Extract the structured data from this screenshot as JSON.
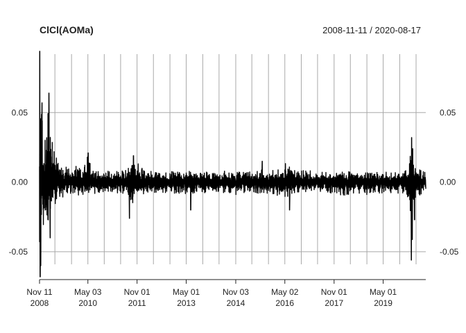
{
  "chart_data": {
    "type": "line",
    "title": "ClCl(AOMa)",
    "date_range": "2008-11-11 / 2020-08-17",
    "x_range": [
      "2008-11-11",
      "2020-08-17"
    ],
    "ylim": [
      -0.07,
      0.095
    ],
    "y_ticks": [
      "0.05",
      "0.00",
      "-0.05"
    ],
    "y_tick_values": [
      0.05,
      0.0,
      -0.05
    ],
    "x_major_ticks": [
      {
        "date": "2008-11-11",
        "label_top": "Nov 11",
        "label_bottom": "2008"
      },
      {
        "date": "2010-05-03",
        "label_top": "May 03",
        "label_bottom": "2010"
      },
      {
        "date": "2011-11-01",
        "label_top": "Nov 01",
        "label_bottom": "2011"
      },
      {
        "date": "2013-05-01",
        "label_top": "May 01",
        "label_bottom": "2013"
      },
      {
        "date": "2014-11-03",
        "label_top": "Nov 03",
        "label_bottom": "2014"
      },
      {
        "date": "2016-05-02",
        "label_top": "May 02",
        "label_bottom": "2016"
      },
      {
        "date": "2017-11-01",
        "label_top": "Nov 01",
        "label_bottom": "2017"
      },
      {
        "date": "2019-05-01",
        "label_top": "May 01",
        "label_bottom": "2019"
      }
    ],
    "x_grid_dates": [
      "2009-05-01",
      "2009-11-02",
      "2010-05-03",
      "2010-11-01",
      "2011-05-02",
      "2011-11-01",
      "2012-05-01",
      "2012-11-01",
      "2013-05-01",
      "2013-11-01",
      "2014-05-01",
      "2014-11-03",
      "2015-05-01",
      "2015-11-02",
      "2016-05-02",
      "2016-11-01",
      "2017-05-01",
      "2017-11-01",
      "2018-05-01",
      "2018-11-01",
      "2019-05-01",
      "2019-11-01",
      "2020-05-01"
    ],
    "grid": true,
    "series": [
      {
        "color": "#000000",
        "envelope": {
          "dates": [
            "2008-11-11",
            "2008-11-20",
            "2008-12-05",
            "2009-01-05",
            "2009-02-02",
            "2009-03-02",
            "2009-04-01",
            "2009-05-01",
            "2009-06-01",
            "2009-07-01",
            "2009-08-03",
            "2009-09-01",
            "2009-10-01",
            "2009-11-02",
            "2010-01-04",
            "2010-03-01",
            "2010-05-03",
            "2010-07-01",
            "2010-09-01",
            "2010-11-01",
            "2011-01-03",
            "2011-03-01",
            "2011-05-02",
            "2011-07-01",
            "2011-09-01",
            "2011-11-01",
            "2012-01-03",
            "2012-03-01",
            "2012-05-01",
            "2012-07-02",
            "2012-09-04",
            "2012-11-01",
            "2013-01-02",
            "2013-03-01",
            "2013-05-01",
            "2013-07-01",
            "2013-09-03",
            "2013-11-01",
            "2014-01-02",
            "2014-03-03",
            "2014-05-01",
            "2014-07-01",
            "2014-09-02",
            "2014-11-03",
            "2015-01-02",
            "2015-03-02",
            "2015-05-01",
            "2015-07-01",
            "2015-09-01",
            "2015-11-02",
            "2016-01-04",
            "2016-03-01",
            "2016-05-02",
            "2016-07-01",
            "2016-09-01",
            "2016-11-01",
            "2017-01-03",
            "2017-03-01",
            "2017-05-01",
            "2017-07-03",
            "2017-09-01",
            "2017-11-01",
            "2018-01-02",
            "2018-03-01",
            "2018-05-01",
            "2018-07-02",
            "2018-09-04",
            "2018-11-01",
            "2019-01-02",
            "2019-03-01",
            "2019-05-01",
            "2019-07-01",
            "2019-09-03",
            "2019-11-01",
            "2020-01-02",
            "2020-02-03",
            "2020-02-24",
            "2020-03-09",
            "2020-03-16",
            "2020-03-23",
            "2020-04-01",
            "2020-04-15",
            "2020-05-01",
            "2020-06-01",
            "2020-07-01",
            "2020-08-17"
          ],
          "upper": [
            0.045,
            0.094,
            0.058,
            0.038,
            0.04,
            0.064,
            0.03,
            0.022,
            0.016,
            0.014,
            0.012,
            0.012,
            0.01,
            0.009,
            0.012,
            0.009,
            0.021,
            0.009,
            0.008,
            0.009,
            0.008,
            0.008,
            0.008,
            0.009,
            0.016,
            0.018,
            0.009,
            0.008,
            0.009,
            0.008,
            0.008,
            0.008,
            0.007,
            0.008,
            0.009,
            0.007,
            0.008,
            0.007,
            0.008,
            0.007,
            0.007,
            0.008,
            0.007,
            0.008,
            0.009,
            0.008,
            0.007,
            0.008,
            0.009,
            0.008,
            0.009,
            0.01,
            0.016,
            0.011,
            0.009,
            0.008,
            0.009,
            0.008,
            0.007,
            0.008,
            0.007,
            0.007,
            0.008,
            0.009,
            0.008,
            0.008,
            0.007,
            0.007,
            0.008,
            0.007,
            0.008,
            0.007,
            0.007,
            0.007,
            0.008,
            0.012,
            0.018,
            0.025,
            0.032,
            0.026,
            0.021,
            0.017,
            0.013,
            0.01,
            0.009,
            0.007
          ],
          "lower": [
            -0.04,
            -0.068,
            -0.052,
            -0.031,
            -0.04,
            -0.028,
            -0.02,
            -0.016,
            -0.013,
            -0.011,
            -0.011,
            -0.01,
            -0.009,
            -0.009,
            -0.01,
            -0.009,
            -0.011,
            -0.009,
            -0.008,
            -0.009,
            -0.008,
            -0.008,
            -0.009,
            -0.01,
            -0.018,
            -0.014,
            -0.009,
            -0.008,
            -0.008,
            -0.008,
            -0.008,
            -0.008,
            -0.008,
            -0.008,
            -0.009,
            -0.008,
            -0.008,
            -0.008,
            -0.008,
            -0.007,
            -0.007,
            -0.008,
            -0.008,
            -0.009,
            -0.008,
            -0.008,
            -0.007,
            -0.008,
            -0.008,
            -0.008,
            -0.009,
            -0.011,
            -0.012,
            -0.009,
            -0.008,
            -0.009,
            -0.008,
            -0.008,
            -0.007,
            -0.008,
            -0.008,
            -0.008,
            -0.009,
            -0.01,
            -0.009,
            -0.008,
            -0.008,
            -0.009,
            -0.008,
            -0.008,
            -0.008,
            -0.008,
            -0.008,
            -0.008,
            -0.009,
            -0.016,
            -0.025,
            -0.038,
            -0.056,
            -0.04,
            -0.027,
            -0.018,
            -0.013,
            -0.01,
            -0.009,
            -0.007
          ]
        },
        "spikes": [
          {
            "date": "2008-11-14",
            "value": 0.094
          },
          {
            "date": "2008-11-18",
            "value": -0.068
          },
          {
            "date": "2008-11-24",
            "value": -0.06
          },
          {
            "date": "2008-12-08",
            "value": 0.057
          },
          {
            "date": "2009-02-23",
            "value": 0.064
          },
          {
            "date": "2009-03-09",
            "value": -0.04
          },
          {
            "date": "2010-05-06",
            "value": 0.021
          },
          {
            "date": "2011-08-08",
            "value": -0.026
          },
          {
            "date": "2011-09-22",
            "value": 0.019
          },
          {
            "date": "2013-06-20",
            "value": -0.02
          },
          {
            "date": "2015-08-24",
            "value": 0.015
          },
          {
            "date": "2016-06-24",
            "value": -0.02
          },
          {
            "date": "2020-03-09",
            "value": -0.056
          },
          {
            "date": "2020-03-13",
            "value": 0.032
          },
          {
            "date": "2020-03-16",
            "value": -0.037
          },
          {
            "date": "2020-03-24",
            "value": 0.024
          },
          {
            "date": "2020-04-14",
            "value": -0.027
          }
        ]
      }
    ]
  }
}
